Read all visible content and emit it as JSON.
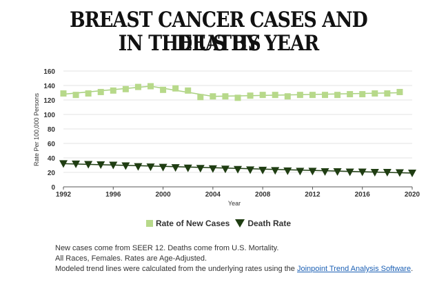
{
  "title_line1": "BREAST CANCER CASES AND DEATHS",
  "title_line2": "IN THE US BY YEAR",
  "colors": {
    "new_cases": "#b7d98a",
    "new_cases_line": "#a8d080",
    "death_rate": "#1f3d12",
    "grid": "#e3e3e3"
  },
  "chart_data": {
    "type": "line",
    "title": "BREAST CANCER CASES AND DEATHS IN THE US BY YEAR",
    "xlabel": "Year",
    "ylabel": "Rate Per 100,000 Persons",
    "xlim": [
      1992,
      2020
    ],
    "ylim": [
      0,
      160
    ],
    "x_ticks": [
      1992,
      1996,
      2000,
      2004,
      2008,
      2012,
      2016,
      2020
    ],
    "y_ticks": [
      0,
      20,
      40,
      60,
      80,
      100,
      120,
      140,
      160
    ],
    "grid": true,
    "legend": "bottom",
    "series": [
      {
        "name": "Rate of New Cases",
        "marker": "square",
        "x": [
          1992,
          1993,
          1994,
          1995,
          1996,
          1997,
          1998,
          1999,
          2000,
          2001,
          2002,
          2003,
          2004,
          2005,
          2006,
          2007,
          2008,
          2009,
          2010,
          2011,
          2012,
          2013,
          2014,
          2015,
          2016,
          2017,
          2018,
          2019
        ],
        "values": [
          129,
          127,
          129,
          131,
          133,
          135,
          138,
          139,
          134,
          136,
          133,
          124,
          125,
          125,
          123,
          126,
          127,
          127,
          125,
          127,
          127,
          127,
          127,
          128,
          128,
          129,
          129,
          131
        ],
        "trend": {
          "x": [
            1992,
            1999,
            2004,
            2019
          ],
          "values": [
            128,
            139,
            125,
            130
          ]
        }
      },
      {
        "name": "Death Rate",
        "marker": "triangle-down",
        "x": [
          1992,
          1993,
          1994,
          1995,
          1996,
          1997,
          1998,
          1999,
          2000,
          2001,
          2002,
          2003,
          2004,
          2005,
          2006,
          2007,
          2008,
          2009,
          2010,
          2011,
          2012,
          2013,
          2014,
          2015,
          2016,
          2017,
          2018,
          2019,
          2020
        ],
        "values": [
          32,
          31.5,
          31,
          30.5,
          30,
          29,
          28,
          27.5,
          27,
          26.5,
          26,
          25.5,
          25,
          24.5,
          24,
          23.5,
          23,
          22.5,
          22,
          21.5,
          21.5,
          21,
          21,
          20.5,
          20.5,
          20,
          20,
          19.5,
          19
        ],
        "trend": {
          "x": [
            1992,
            2020
          ],
          "values": [
            32,
            19
          ]
        }
      }
    ]
  },
  "notes": {
    "line1": "New cases come from SEER 12. Deaths come from U.S. Mortality.",
    "line2": "All Races, Females. Rates are Age-Adjusted.",
    "line3_prefix": "Modeled trend lines were calculated from the underlying rates using the ",
    "line3_link": "Joinpoint Trend Analysis Software",
    "line3_suffix": "."
  }
}
